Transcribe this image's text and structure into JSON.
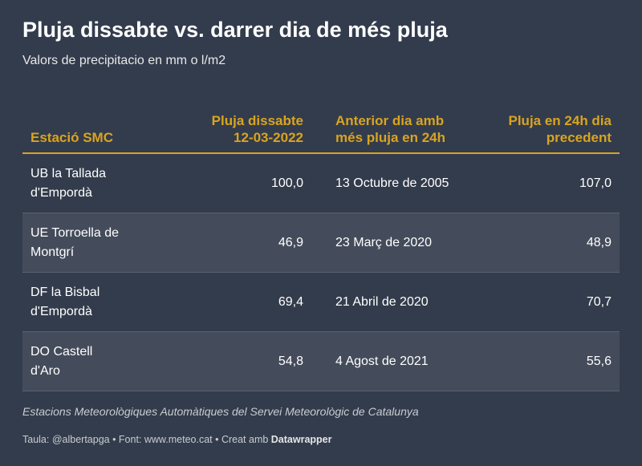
{
  "title": "Pluja dissabte vs. darrer dia de més pluja",
  "subtitle": "Valors de precipitacio en mm o l/m2",
  "chart_data": {
    "type": "table",
    "columns": [
      {
        "line1": "",
        "line2": "Estació SMC"
      },
      {
        "line1": "Pluja dissabte",
        "line2": "12-03-2022"
      },
      {
        "line1": "Anterior dia amb",
        "line2": "més pluja en 24h"
      },
      {
        "line1": "Pluja en 24h dia",
        "line2": "precedent"
      }
    ],
    "rows": [
      {
        "station_l1": "UB la Tallada",
        "station_l2": "d'Empordà",
        "rain_saturday": "100,0",
        "previous_date": "13 Octubre de 2005",
        "rain_previous": "107,0"
      },
      {
        "station_l1": "UE Torroella de",
        "station_l2": "Montgrí",
        "rain_saturday": "46,9",
        "previous_date": "23 Març de 2020",
        "rain_previous": "48,9"
      },
      {
        "station_l1": "DF la Bisbal",
        "station_l2": "d'Empordà",
        "rain_saturday": "69,4",
        "previous_date": "21 Abril de 2020",
        "rain_previous": "70,7"
      },
      {
        "station_l1": "DO Castell",
        "station_l2": "d'Aro",
        "rain_saturday": "54,8",
        "previous_date": "4 Agost de 2021",
        "rain_previous": "55,6"
      }
    ]
  },
  "source": "Estacions Meteorològiques Automàtiques del Servei Meteorològic de Catalunya",
  "footer": {
    "prefix": "Taula: @albertapga • Font: www.meteo.cat • Creat amb ",
    "brand": "Datawrapper"
  },
  "colors": {
    "background": "#333c4c",
    "accent": "#d9a420",
    "row_alt": "#444c5b"
  }
}
